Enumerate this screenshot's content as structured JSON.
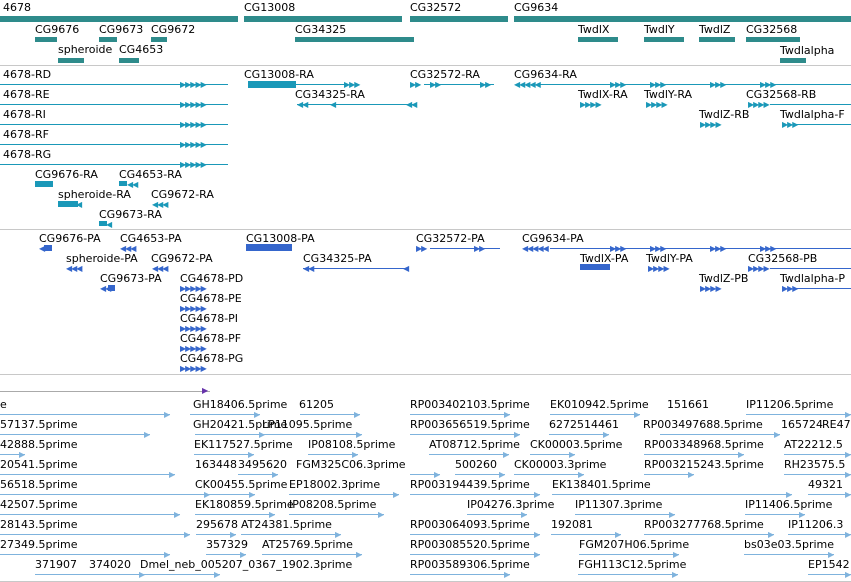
{
  "colors": {
    "gene": "#2e8b8b",
    "teal": "#1a98b8",
    "blue": "#3566cc",
    "est": "#7fb3dd",
    "purple": "#6633aa",
    "separator": "#c8c8c8"
  },
  "tracks": {
    "genes": {
      "labels": [
        "4678",
        "CG13008",
        "CG32572",
        "CG9634",
        "CG9676",
        "CG9673",
        "CG9672",
        "CG34325",
        "TwdlX",
        "TwdlY",
        "TwdlZ",
        "CG32568",
        "spheroide",
        "CG4653",
        "Twdlalpha"
      ]
    },
    "transcripts_teal": {
      "labels": [
        "4678-RD",
        "CG13008-RA",
        "CG32572-RA",
        "CG9634-RA",
        "4678-RE",
        "CG34325-RA",
        "TwdlX-RA",
        "TwdlY-RA",
        "CG32568-RB",
        "4678-RI",
        "TwdlZ-RB",
        "Twdlalpha-F",
        "4678-RF",
        "4678-RG",
        "CG9676-RA",
        "CG4653-RA",
        "spheroide-RA",
        "CG9672-RA",
        "CG9673-RA"
      ]
    },
    "transcripts_blue": {
      "labels": [
        "CG9676-PA",
        "CG4653-PA",
        "CG13008-PA",
        "CG32572-PA",
        "CG9634-PA",
        "spheroide-PA",
        "CG9672-PA",
        "CG34325-PA",
        "TwdlX-PA",
        "TwdlY-PA",
        "CG32568-PB",
        "CG9673-PA",
        "CG4678-PD",
        "TwdlZ-PB",
        "Twdlalpha-P",
        "CG4678-PE",
        "CG4678-PI",
        "CG4678-PF",
        "CG4678-PG"
      ]
    },
    "ests": {
      "labels": [
        "e",
        "GH18406.5prime",
        "61205",
        "RP003402103.5prime",
        "EK010942.5prime",
        "151661",
        "IP11206.5prime",
        "57137.5prime",
        "GH20421.5prime",
        "LP11095.5prime",
        "RP003656519.5prime",
        "6272514461",
        "RP003497688.5prime",
        "165724",
        "RE47",
        "42888.5prime",
        "EK117527.5prime",
        "IP08108.5prime",
        "AT08712.5prime",
        "CK00003.5prime",
        "RP003348968.5prime",
        "AT22212.5",
        "20541.5prime",
        "163448",
        "3495620",
        "FGM325C06.3prime",
        "500260",
        "CK00003.3prime",
        "RP003215243.5prime",
        "RH23575.5",
        "56518.5prime",
        "CK00455.5prime",
        "EP18002.3prime",
        "RP003194439.5prime",
        "EK138401.5prime",
        "49321",
        "42507.5prime",
        "EK180859.5prime",
        "IP08208.5prime",
        "IP04276.3prime",
        "IP11307.3prime",
        "IP11406.5prime",
        "28143.5prime",
        "295678",
        "AT24381.5prime",
        "RP003064093.5prime",
        "192081",
        "RP003277768.5prime",
        "IP11206.3",
        "27349.5prime",
        "357329",
        "AT25769.5prime",
        "RP003085520.5prime",
        "FGM207H06.5prime",
        "bs03e03.5prime",
        "371907",
        "374020",
        "Dmel_neb_005207_0367_1902.3prime",
        "RP003589306.5prime",
        "FGH113C12.5prime",
        "EP1542"
      ]
    }
  }
}
